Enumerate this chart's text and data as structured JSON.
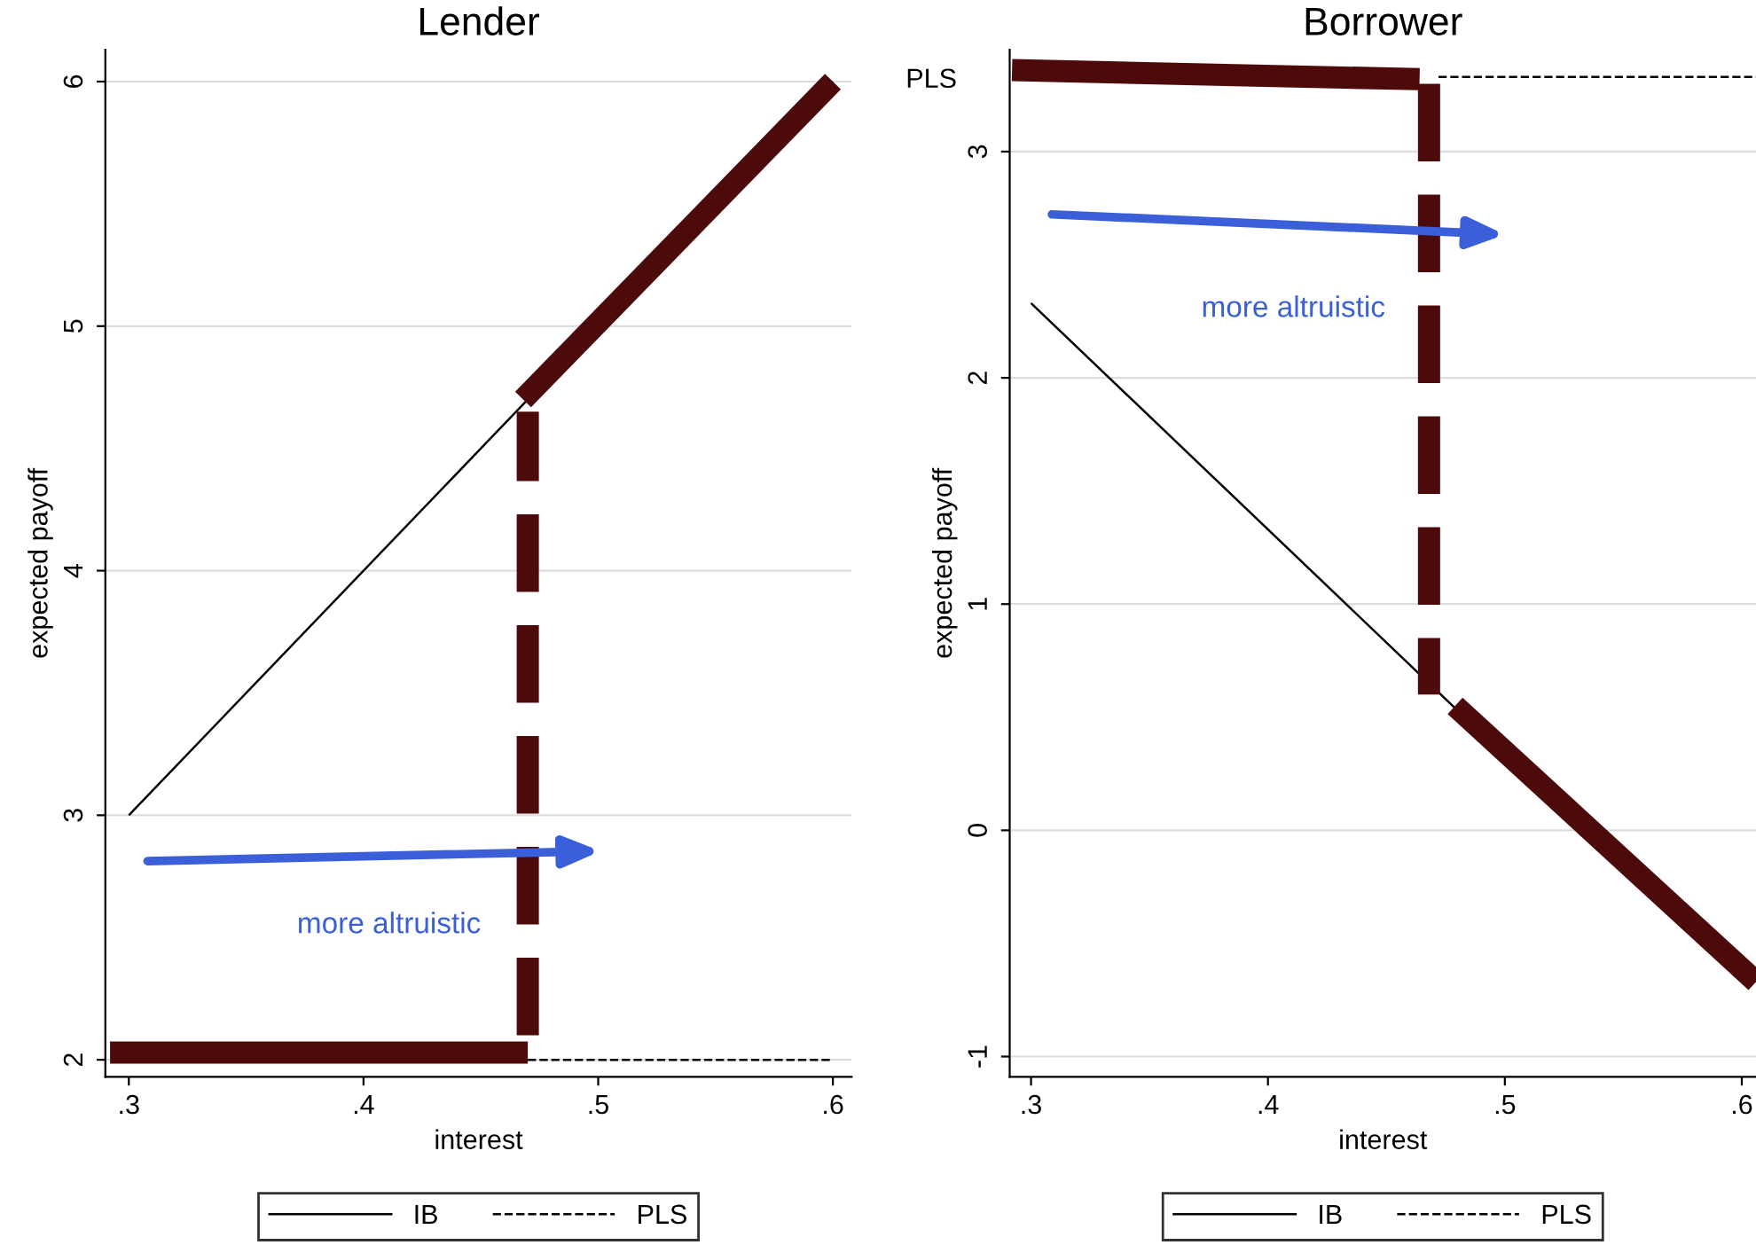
{
  "chart_data": [
    {
      "type": "line",
      "title": "Lender",
      "xlabel": "interest",
      "ylabel": "expected payoff",
      "xlim": [
        0.29,
        0.608
      ],
      "ylim": [
        1.93,
        6.13
      ],
      "xticks": [
        {
          "value": 0.3,
          "label": ".3"
        },
        {
          "value": 0.4,
          "label": ".4"
        },
        {
          "value": 0.5,
          "label": ".5"
        },
        {
          "value": 0.6,
          "label": ".6"
        }
      ],
      "yticks": [
        2,
        3,
        4,
        5,
        6
      ],
      "grid": "y",
      "legend": "bottom",
      "annotations": [
        "more altruistic"
      ],
      "series": [
        {
          "name": "IB",
          "color": "#000000",
          "x": [
            0.3,
            0.6
          ],
          "values": [
            3,
            6
          ],
          "line_style": "solid"
        },
        {
          "name": "PLS",
          "color": "#000000",
          "x": [
            0.47,
            0.6
          ],
          "values": [
            2,
            2
          ],
          "line_style": "dashed"
        },
        {
          "color": "#4d0a0a",
          "x": [
            0.292,
            0.47
          ],
          "values": [
            2.03,
            2.03
          ],
          "line_style": "solid"
        },
        {
          "color": "#4d0a0a",
          "x": [
            0.47,
            0.47
          ],
          "values": [
            2.1,
            4.65
          ],
          "line_style": "dashed"
        },
        {
          "color": "#4d0a0a",
          "x": [
            0.468,
            0.6
          ],
          "values": [
            4.7,
            6
          ],
          "line_style": "solid"
        }
      ]
    },
    {
      "type": "line",
      "title": "Borrower",
      "xlabel": "interest",
      "ylabel": "expected payoff",
      "xlim": [
        0.291,
        0.606
      ],
      "ylim": [
        -1.09,
        3.45
      ],
      "xticks": [
        {
          "value": 0.3,
          "label": ".3"
        },
        {
          "value": 0.4,
          "label": ".4"
        },
        {
          "value": 0.5,
          "label": ".5"
        },
        {
          "value": 0.6,
          "label": ".6"
        }
      ],
      "yticks": [
        {
          "value": -1,
          "label": "-1"
        },
        0,
        1,
        2,
        3
      ],
      "grid": "y",
      "legend": "bottom",
      "annotations": [
        "more altruistic",
        "PLS"
      ],
      "series": [
        {
          "name": "IB",
          "color": "#000000",
          "x": [
            0.3,
            0.6
          ],
          "values": [
            2.33,
            -0.67
          ],
          "line_style": "solid"
        },
        {
          "name": "PLS",
          "color": "#000000",
          "x": [
            0.472,
            0.606
          ],
          "values": [
            3.33,
            3.33
          ],
          "line_style": "dashed"
        },
        {
          "color": "#4d0a0a",
          "x": [
            0.292,
            0.464
          ],
          "values": [
            3.36,
            3.32
          ],
          "line_style": "solid"
        },
        {
          "color": "#4d0a0a",
          "x": [
            0.468,
            0.468
          ],
          "values": [
            3.3,
            0.6
          ],
          "line_style": "dashed"
        },
        {
          "color": "#4d0a0a",
          "x": [
            0.479,
            0.606
          ],
          "values": [
            0.55,
            -0.67
          ],
          "line_style": "solid"
        }
      ]
    }
  ]
}
